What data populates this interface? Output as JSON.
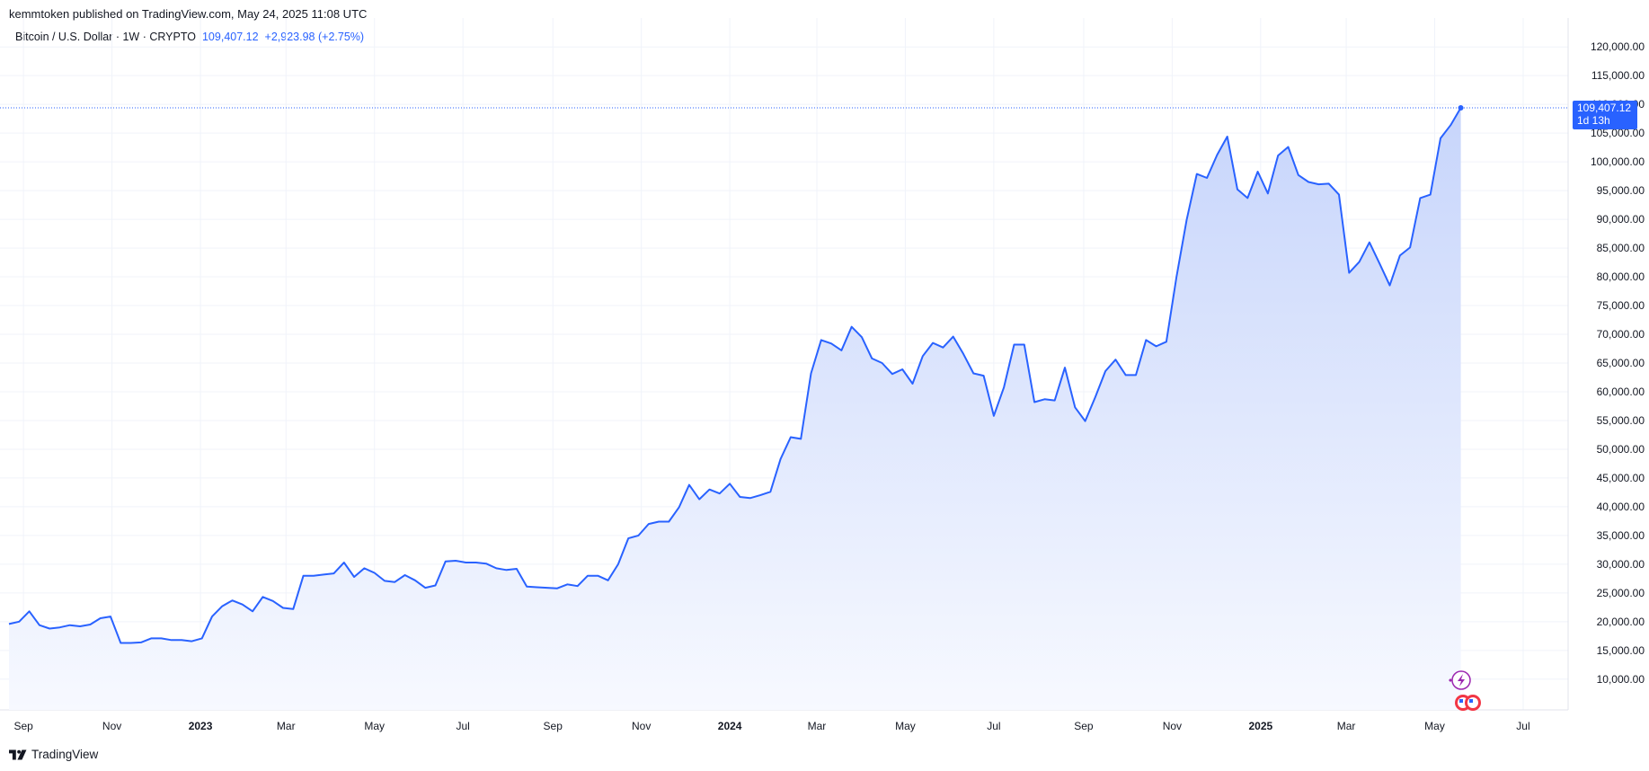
{
  "header": {
    "published_line": "kemmtoken published on TradingView.com, May 24, 2025 11:08 UTC"
  },
  "legend": {
    "symbol": "Bitcoin / U.S. Dollar · 1W · CRYPTO",
    "last_price": "109,407.12",
    "change": "+2,923.98 (+2.75%)"
  },
  "price_tag": {
    "price": "109,407.12",
    "countdown": "1d 13h"
  },
  "brand": {
    "name": "TradingView"
  },
  "colors": {
    "line": "#2962ff",
    "area_top": "#c7d5fb",
    "area_bottom": "#f7f9ff",
    "grid": "#f0f3fa",
    "tag_bg": "#2962ff"
  },
  "chart_data": {
    "type": "area",
    "series": [
      {
        "name": "Bitcoin / U.S. Dollar",
        "points": [
          [
            "2022-08-22",
            19600
          ],
          [
            "2022-08-29",
            20000
          ],
          [
            "2022-09-05",
            21800
          ],
          [
            "2022-09-12",
            19400
          ],
          [
            "2022-09-19",
            18800
          ],
          [
            "2022-09-26",
            19000
          ],
          [
            "2022-10-03",
            19400
          ],
          [
            "2022-10-10",
            19200
          ],
          [
            "2022-10-17",
            19500
          ],
          [
            "2022-10-24",
            20600
          ],
          [
            "2022-10-31",
            20900
          ],
          [
            "2022-11-07",
            16300
          ],
          [
            "2022-11-14",
            16300
          ],
          [
            "2022-11-21",
            16400
          ],
          [
            "2022-11-28",
            17100
          ],
          [
            "2022-12-05",
            17100
          ],
          [
            "2022-12-12",
            16800
          ],
          [
            "2022-12-19",
            16800
          ],
          [
            "2022-12-26",
            16600
          ],
          [
            "2023-01-02",
            17100
          ],
          [
            "2023-01-09",
            20900
          ],
          [
            "2023-01-16",
            22700
          ],
          [
            "2023-01-23",
            23700
          ],
          [
            "2023-01-30",
            23000
          ],
          [
            "2023-02-06",
            21800
          ],
          [
            "2023-02-13",
            24300
          ],
          [
            "2023-02-20",
            23600
          ],
          [
            "2023-02-27",
            22400
          ],
          [
            "2023-03-06",
            22200
          ],
          [
            "2023-03-13",
            28000
          ],
          [
            "2023-03-20",
            28000
          ],
          [
            "2023-03-27",
            28200
          ],
          [
            "2023-04-03",
            28400
          ],
          [
            "2023-04-10",
            30300
          ],
          [
            "2023-04-17",
            27800
          ],
          [
            "2023-04-24",
            29300
          ],
          [
            "2023-05-01",
            28500
          ],
          [
            "2023-05-08",
            27100
          ],
          [
            "2023-05-15",
            26900
          ],
          [
            "2023-05-22",
            28100
          ],
          [
            "2023-05-29",
            27200
          ],
          [
            "2023-06-05",
            25900
          ],
          [
            "2023-06-12",
            26300
          ],
          [
            "2023-06-19",
            30500
          ],
          [
            "2023-06-26",
            30600
          ],
          [
            "2023-07-03",
            30300
          ],
          [
            "2023-07-10",
            30300
          ],
          [
            "2023-07-17",
            30100
          ],
          [
            "2023-07-24",
            29300
          ],
          [
            "2023-07-31",
            29000
          ],
          [
            "2023-08-07",
            29200
          ],
          [
            "2023-08-14",
            26100
          ],
          [
            "2023-08-21",
            26000
          ],
          [
            "2023-08-28",
            25900
          ],
          [
            "2023-09-04",
            25800
          ],
          [
            "2023-09-11",
            26500
          ],
          [
            "2023-09-18",
            26200
          ],
          [
            "2023-09-25",
            28000
          ],
          [
            "2023-10-02",
            28000
          ],
          [
            "2023-10-09",
            27200
          ],
          [
            "2023-10-16",
            30000
          ],
          [
            "2023-10-23",
            34500
          ],
          [
            "2023-10-30",
            35000
          ],
          [
            "2023-11-06",
            37000
          ],
          [
            "2023-11-13",
            37400
          ],
          [
            "2023-11-20",
            37400
          ],
          [
            "2023-11-27",
            39900
          ],
          [
            "2023-12-04",
            43800
          ],
          [
            "2023-12-11",
            41300
          ],
          [
            "2023-12-18",
            43000
          ],
          [
            "2023-12-25",
            42300
          ],
          [
            "2024-01-01",
            44000
          ],
          [
            "2024-01-08",
            41700
          ],
          [
            "2024-01-15",
            41500
          ],
          [
            "2024-01-22",
            42000
          ],
          [
            "2024-01-29",
            42600
          ],
          [
            "2024-02-05",
            48300
          ],
          [
            "2024-02-12",
            52100
          ],
          [
            "2024-02-19",
            51800
          ],
          [
            "2024-02-26",
            63200
          ],
          [
            "2024-03-04",
            69000
          ],
          [
            "2024-03-11",
            68400
          ],
          [
            "2024-03-18",
            67200
          ],
          [
            "2024-03-25",
            71300
          ],
          [
            "2024-04-01",
            69500
          ],
          [
            "2024-04-08",
            65800
          ],
          [
            "2024-04-15",
            65000
          ],
          [
            "2024-04-22",
            63100
          ],
          [
            "2024-04-29",
            63900
          ],
          [
            "2024-05-06",
            61400
          ],
          [
            "2024-05-13",
            66200
          ],
          [
            "2024-05-20",
            68500
          ],
          [
            "2024-05-27",
            67700
          ],
          [
            "2024-06-03",
            69600
          ],
          [
            "2024-06-10",
            66600
          ],
          [
            "2024-06-17",
            63200
          ],
          [
            "2024-06-24",
            62800
          ],
          [
            "2024-07-01",
            55800
          ],
          [
            "2024-07-08",
            60800
          ],
          [
            "2024-07-15",
            68200
          ],
          [
            "2024-07-22",
            68200
          ],
          [
            "2024-07-29",
            58200
          ],
          [
            "2024-08-05",
            58700
          ],
          [
            "2024-08-12",
            58500
          ],
          [
            "2024-08-19",
            64200
          ],
          [
            "2024-08-26",
            57300
          ],
          [
            "2024-09-02",
            54900
          ],
          [
            "2024-09-09",
            59100
          ],
          [
            "2024-09-16",
            63600
          ],
          [
            "2024-09-23",
            65600
          ],
          [
            "2024-09-30",
            62900
          ],
          [
            "2024-10-07",
            62900
          ],
          [
            "2024-10-14",
            69000
          ],
          [
            "2024-10-21",
            67900
          ],
          [
            "2024-10-28",
            68700
          ],
          [
            "2024-11-04",
            80000
          ],
          [
            "2024-11-11",
            89900
          ],
          [
            "2024-11-18",
            97900
          ],
          [
            "2024-11-25",
            97200
          ],
          [
            "2024-12-02",
            101200
          ],
          [
            "2024-12-09",
            104400
          ],
          [
            "2024-12-16",
            95200
          ],
          [
            "2024-12-23",
            93700
          ],
          [
            "2024-12-30",
            98300
          ],
          [
            "2025-01-06",
            94500
          ],
          [
            "2025-01-13",
            101100
          ],
          [
            "2025-01-20",
            102600
          ],
          [
            "2025-01-27",
            97700
          ],
          [
            "2025-02-03",
            96500
          ],
          [
            "2025-02-10",
            96100
          ],
          [
            "2025-02-17",
            96200
          ],
          [
            "2025-02-24",
            94300
          ],
          [
            "2025-03-03",
            80700
          ],
          [
            "2025-03-10",
            82600
          ],
          [
            "2025-03-17",
            86000
          ],
          [
            "2025-03-24",
            82300
          ],
          [
            "2025-03-31",
            78500
          ],
          [
            "2025-04-07",
            83700
          ],
          [
            "2025-04-14",
            85100
          ],
          [
            "2025-04-21",
            93700
          ],
          [
            "2025-04-28",
            94300
          ],
          [
            "2025-05-05",
            104100
          ],
          [
            "2025-05-12",
            106400
          ],
          [
            "2025-05-19",
            109407.12
          ]
        ]
      }
    ],
    "x_ticks": [
      {
        "label": "Sep",
        "date": "2022-09-01",
        "bold": false
      },
      {
        "label": "Nov",
        "date": "2022-11-01",
        "bold": false
      },
      {
        "label": "2023",
        "date": "2023-01-01",
        "bold": true
      },
      {
        "label": "Mar",
        "date": "2023-03-01",
        "bold": false
      },
      {
        "label": "May",
        "date": "2023-05-01",
        "bold": false
      },
      {
        "label": "Jul",
        "date": "2023-07-01",
        "bold": false
      },
      {
        "label": "Sep",
        "date": "2023-09-01",
        "bold": false
      },
      {
        "label": "Nov",
        "date": "2023-11-01",
        "bold": false
      },
      {
        "label": "2024",
        "date": "2024-01-01",
        "bold": true
      },
      {
        "label": "Mar",
        "date": "2024-03-01",
        "bold": false
      },
      {
        "label": "May",
        "date": "2024-05-01",
        "bold": false
      },
      {
        "label": "Jul",
        "date": "2024-07-01",
        "bold": false
      },
      {
        "label": "Sep",
        "date": "2024-09-01",
        "bold": false
      },
      {
        "label": "Nov",
        "date": "2024-11-01",
        "bold": false
      },
      {
        "label": "2025",
        "date": "2025-01-01",
        "bold": true
      },
      {
        "label": "Mar",
        "date": "2025-03-01",
        "bold": false
      },
      {
        "label": "May",
        "date": "2025-05-01",
        "bold": false
      },
      {
        "label": "Jul",
        "date": "2025-07-01",
        "bold": false
      }
    ],
    "y_ticks": [
      10000,
      15000,
      20000,
      25000,
      30000,
      35000,
      40000,
      45000,
      50000,
      55000,
      60000,
      65000,
      70000,
      75000,
      80000,
      85000,
      90000,
      95000,
      100000,
      105000,
      110000,
      115000,
      120000
    ],
    "y_tick_labels": [
      "10,000.00",
      "15,000.00",
      "20,000.00",
      "25,000.00",
      "30,000.00",
      "35,000.00",
      "40,000.00",
      "45,000.00",
      "50,000.00",
      "55,000.00",
      "60,000.00",
      "65,000.00",
      "70,000.00",
      "75,000.00",
      "80,000.00",
      "85,000.00",
      "90,000.00",
      "95,000.00",
      "100,000.00",
      "105,000.00",
      "110,000.00",
      "115,000.00",
      "120,000.00"
    ],
    "x_range": [
      "2022-08-22",
      "2025-08-01"
    ],
    "ylim": [
      7000,
      123000
    ],
    "grid": true,
    "last_value_line": 109407.12
  }
}
